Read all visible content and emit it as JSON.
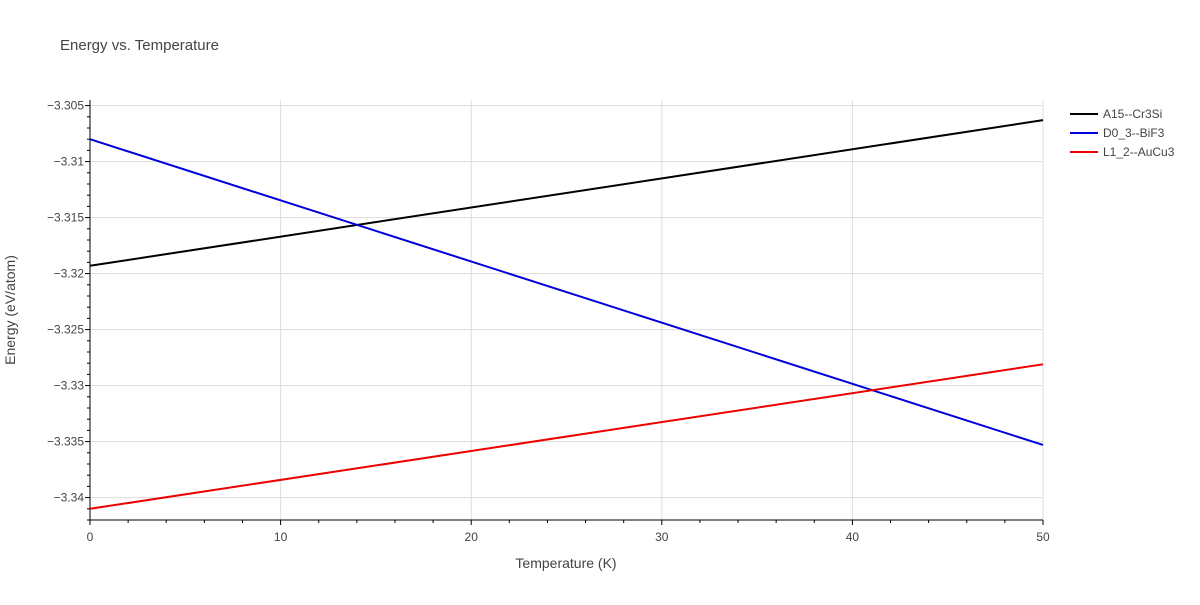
{
  "chart_data": {
    "type": "line",
    "title": "Energy vs. Temperature",
    "xlabel": "Temperature (K)",
    "ylabel": "Energy (eV/atom)",
    "xlim": [
      0,
      50
    ],
    "ylim": [
      -3.342,
      -3.3045
    ],
    "x_ticks": [
      0,
      10,
      20,
      30,
      40,
      50
    ],
    "x_tick_labels": [
      "0",
      "10",
      "20",
      "30",
      "40",
      "50"
    ],
    "y_ticks": [
      -3.305,
      -3.31,
      -3.315,
      -3.32,
      -3.325,
      -3.33,
      -3.335,
      -3.34
    ],
    "y_tick_labels": [
      "−3.305",
      "−3.31",
      "−3.315",
      "−3.32",
      "−3.325",
      "−3.33",
      "−3.335",
      "−3.34"
    ],
    "grid": true,
    "legend_position": "top-right",
    "series": [
      {
        "name": "A15--Cr3Si",
        "color": "#000000",
        "x": [
          0,
          50
        ],
        "y": [
          -3.3193,
          -3.3063
        ]
      },
      {
        "name": "D0_3--BiF3",
        "color": "#0000dd",
        "x": [
          0,
          50
        ],
        "y": [
          -3.308,
          -3.3353
        ]
      },
      {
        "name": "L1_2--AuCu3",
        "color": "#ee0000",
        "x": [
          0,
          50
        ],
        "y": [
          -3.341,
          -3.3281
        ]
      }
    ]
  }
}
